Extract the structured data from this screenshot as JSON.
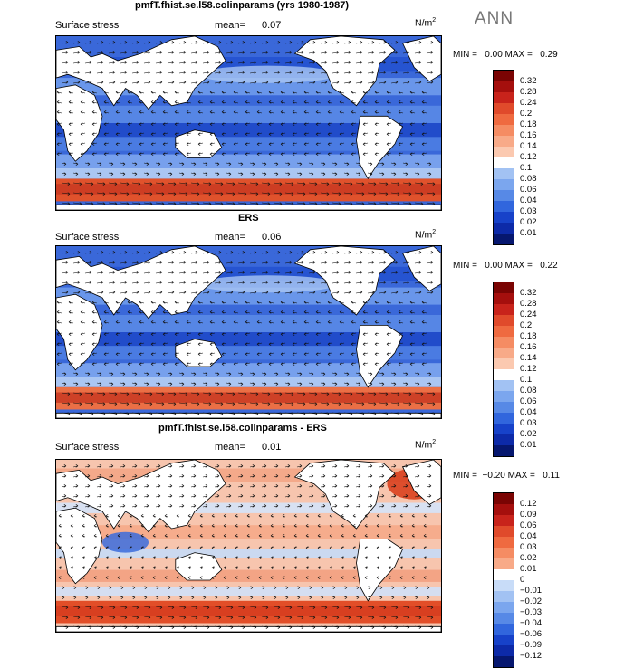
{
  "ann_label": "ANN",
  "palette_pos": [
    "#7a0403",
    "#b0100d",
    "#d73a1e",
    "#ea5f30",
    "#f38458",
    "#f7a482",
    "#fbc3a8",
    "#fde0d0",
    "#ffffff",
    "#d7e6fb",
    "#b1cdf5",
    "#86aff0",
    "#5d8fe8",
    "#3c6ce0",
    "#1f49d4",
    "#0d2cb8",
    "#091a84"
  ],
  "panels": [
    {
      "id": "model",
      "title": "pmfT.fhist.se.l58.colinparams (yrs 1980-1987)",
      "var_label": "Surface stress",
      "mean_label": "mean=",
      "mean_value": "0.07",
      "units": "N/m",
      "units_exp": "2",
      "min_label": "MIN =",
      "min_value": "0.00",
      "max_label": "MAX =",
      "max_value": "0.29",
      "colorbar_ticks": [
        "0.32",
        "0.28",
        "0.24",
        "0.2",
        "0.18",
        "0.16",
        "0.14",
        "0.12",
        "0.1",
        "0.08",
        "0.06",
        "0.04",
        "0.03",
        "0.02",
        "0.01"
      ]
    },
    {
      "id": "obs",
      "title": "ERS",
      "var_label": "Surface stress",
      "mean_label": "mean=",
      "mean_value": "0.06",
      "units": "N/m",
      "units_exp": "2",
      "min_label": "MIN =",
      "min_value": "0.00",
      "max_label": "MAX =",
      "max_value": "0.22",
      "colorbar_ticks": [
        "0.32",
        "0.28",
        "0.24",
        "0.2",
        "0.18",
        "0.16",
        "0.14",
        "0.12",
        "0.1",
        "0.08",
        "0.06",
        "0.04",
        "0.03",
        "0.02",
        "0.01"
      ]
    },
    {
      "id": "diff",
      "title": "pmfT.fhist.se.l58.colinparams - ERS",
      "var_label": "Surface stress",
      "mean_label": "mean=",
      "mean_value": "0.01",
      "units": "N/m",
      "units_exp": "2",
      "min_label": "MIN =",
      "min_value": "−0.20",
      "max_label": "MAX =",
      "max_value": "0.11",
      "colorbar_ticks": [
        "0.12",
        "0.09",
        "0.06",
        "0.04",
        "0.03",
        "0.02",
        "0.01",
        "0",
        "−0.01",
        "−0.02",
        "−0.03",
        "−0.04",
        "−0.06",
        "−0.09",
        "−0.12"
      ]
    }
  ]
}
